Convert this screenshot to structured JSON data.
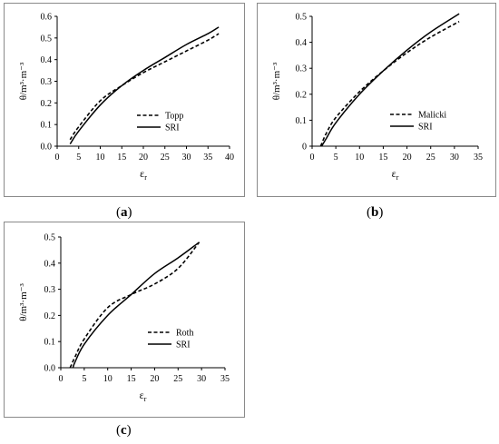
{
  "chart_data": [
    {
      "type": "line",
      "caption": {
        "open": "(",
        "letter": "a",
        "close": ")"
      },
      "xlabel": "ε",
      "xlabel_sub": "r",
      "ylabel": "θ/m³·m⁻³",
      "xlim": [
        0,
        40
      ],
      "ylim": [
        0,
        0.6
      ],
      "xticks": [
        0,
        5,
        10,
        15,
        20,
        25,
        30,
        35,
        40
      ],
      "yticks": [
        0,
        0.1,
        0.2,
        0.3,
        0.4,
        0.5,
        0.6
      ],
      "ytick_labels": [
        "0.0",
        "0.1",
        "0.2",
        "0.3",
        "0.4",
        "0.5",
        "0.6"
      ],
      "grid": false,
      "legend_position": "center-right",
      "series": [
        {
          "name": "Topp",
          "style": "dashed",
          "x": [
            3,
            5,
            10,
            15,
            20,
            25,
            30,
            35,
            37.5
          ],
          "y": [
            0.03,
            0.09,
            0.21,
            0.28,
            0.34,
            0.39,
            0.44,
            0.49,
            0.52
          ]
        },
        {
          "name": "SRI",
          "style": "solid",
          "x": [
            3,
            5,
            10,
            15,
            20,
            25,
            30,
            35,
            37.5
          ],
          "y": [
            0.01,
            0.07,
            0.19,
            0.28,
            0.35,
            0.41,
            0.47,
            0.52,
            0.55
          ]
        }
      ]
    },
    {
      "type": "line",
      "caption": {
        "open": "(",
        "letter": "b",
        "close": ")"
      },
      "xlabel": "ε",
      "xlabel_sub": "r",
      "ylabel": "θ/m³·m⁻³",
      "xlim": [
        0,
        35
      ],
      "ylim": [
        0,
        0.5
      ],
      "xticks": [
        0,
        5,
        10,
        15,
        20,
        25,
        30,
        35
      ],
      "yticks": [
        0,
        0.1,
        0.2,
        0.3,
        0.4,
        0.5
      ],
      "ytick_labels": [
        "0",
        "0.1",
        "0.2",
        "0.3",
        "0.4",
        "0.5"
      ],
      "grid": false,
      "legend_position": "center-right",
      "series": [
        {
          "name": "Malicki",
          "style": "dashed",
          "x": [
            1.8,
            3,
            5,
            10,
            15,
            20,
            25,
            31
          ],
          "y": [
            0.0,
            0.05,
            0.11,
            0.21,
            0.29,
            0.36,
            0.42,
            0.48
          ]
        },
        {
          "name": "SRI",
          "style": "solid",
          "x": [
            2,
            3,
            5,
            10,
            15,
            20,
            25,
            31
          ],
          "y": [
            0.0,
            0.03,
            0.09,
            0.2,
            0.29,
            0.37,
            0.44,
            0.51
          ]
        }
      ]
    },
    {
      "type": "line",
      "caption": {
        "open": "(",
        "letter": "c",
        "close": ")"
      },
      "xlabel": "ε",
      "xlabel_sub": "r",
      "ylabel": "θ/m³·m⁻³",
      "xlim": [
        0,
        35
      ],
      "ylim": [
        0,
        0.5
      ],
      "xticks": [
        0,
        5,
        10,
        15,
        20,
        25,
        30,
        35
      ],
      "yticks": [
        0,
        0.1,
        0.2,
        0.3,
        0.4,
        0.5
      ],
      "ytick_labels": [
        "0.0",
        "0.1",
        "0.2",
        "0.3",
        "0.4",
        "0.5"
      ],
      "grid": false,
      "legend_position": "center-right",
      "series": [
        {
          "name": "Roth",
          "style": "dashed",
          "x": [
            2,
            3,
            5,
            10,
            15,
            20,
            25,
            29.5
          ],
          "y": [
            0.0,
            0.04,
            0.11,
            0.23,
            0.28,
            0.32,
            0.38,
            0.48
          ]
        },
        {
          "name": "SRI",
          "style": "solid",
          "x": [
            2.6,
            3,
            5,
            10,
            15,
            20,
            25,
            29.5
          ],
          "y": [
            0.0,
            0.02,
            0.09,
            0.2,
            0.28,
            0.36,
            0.42,
            0.48
          ]
        }
      ]
    }
  ]
}
